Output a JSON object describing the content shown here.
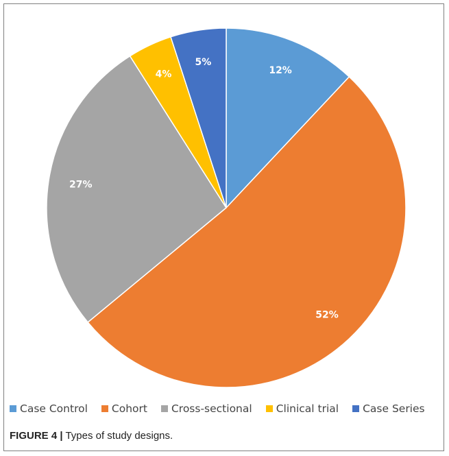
{
  "chart_data": {
    "type": "pie",
    "categories": [
      "Case Control",
      "Cohort",
      "Cross-sectional",
      "Clinical trial",
      "Case Series"
    ],
    "values": [
      12,
      52,
      27,
      4,
      5
    ],
    "data_labels": [
      "12%",
      "52%",
      "27%",
      "4%",
      "5%"
    ],
    "colors": [
      "#5b9bd5",
      "#ed7d31",
      "#a5a5a5",
      "#ffc000",
      "#4472c4"
    ],
    "start_angle_deg": 0,
    "direction": "clockwise",
    "legend": "bottom",
    "title": ""
  },
  "caption": {
    "label": "FIGURE 4 |",
    "text": " Types of study designs."
  }
}
